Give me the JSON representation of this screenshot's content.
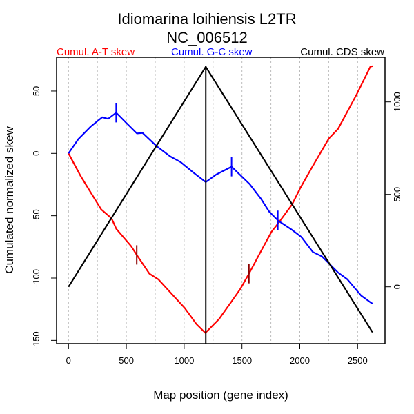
{
  "chart_data": {
    "type": "line",
    "title": "Idiomarina loihiensis L2TR",
    "subtitle": "NC_006512",
    "xlabel": "Map position (gene index)",
    "ylabel": "Cumulated normalized skew",
    "xlim": [
      -100,
      2760
    ],
    "ylim": [
      -153,
      77
    ],
    "y2lim": [
      -310,
      1300
    ],
    "xticks": [
      0,
      500,
      1000,
      1500,
      2000,
      2500
    ],
    "yticks": [
      -150,
      -100,
      -50,
      0,
      50
    ],
    "y2ticks": [
      0,
      500,
      1000
    ],
    "xgrid": [
      0,
      250,
      500,
      750,
      1000,
      1250,
      1500,
      1750,
      2000,
      2250,
      2500
    ],
    "grid": "vertical dashed",
    "legend_placement": "top",
    "vline_x": 1187,
    "series": [
      {
        "name": "Cumul. A-T skew",
        "color": "#ff0000",
        "axis": "left",
        "x": [
          0,
          104,
          183,
          283,
          372,
          413,
          541,
          592,
          700,
          776,
          860,
          1005,
          1107,
          1183,
          1301,
          1393,
          1484,
          1560,
          1655,
          1755,
          1814,
          1933,
          2003,
          2113,
          2252,
          2331,
          2490,
          2610,
          2629
        ],
        "y": [
          0,
          -18,
          -30,
          -45,
          -52,
          -60.5,
          -74.4,
          -81.7,
          -96.5,
          -101,
          -109.4,
          -124,
          -137,
          -144,
          -133,
          -121,
          -109,
          -96.5,
          -80,
          -63,
          -56,
          -41,
          -28,
          -10,
          12,
          19.7,
          47,
          69.5,
          70
        ],
        "markers_x": [
          590,
          1560
        ],
        "marker_color": "#8b0000"
      },
      {
        "name": "Cumul. G-C skew",
        "color": "#0000ff",
        "axis": "left",
        "x": [
          0,
          84,
          193,
          292,
          342,
          412,
          501,
          591,
          641,
          760,
          879,
          969,
          1078,
          1187,
          1277,
          1410,
          1566,
          1665,
          1735,
          1814,
          1933,
          2013,
          2112,
          2192,
          2331,
          2411,
          2530,
          2619,
          2629
        ],
        "y": [
          0,
          11.4,
          21.6,
          29,
          27.7,
          32.6,
          24.3,
          16,
          16.4,
          5.9,
          -2.4,
          -7,
          -15.3,
          -23,
          -17,
          -10.7,
          -24.6,
          -36.5,
          -46.7,
          -54,
          -61.4,
          -67,
          -79,
          -82.7,
          -95.6,
          -101,
          -114,
          -120,
          -120.5
        ],
        "markers_x": [
          412,
          1410,
          1810
        ],
        "marker_color": "#0000ff"
      },
      {
        "name": "Cumul. CDS skew",
        "color": "#000000",
        "axis": "right",
        "x": [
          0,
          1187,
          2629
        ],
        "y": [
          0,
          1190,
          -246
        ],
        "markers_x": [],
        "marker_color": "#000000"
      }
    ]
  }
}
